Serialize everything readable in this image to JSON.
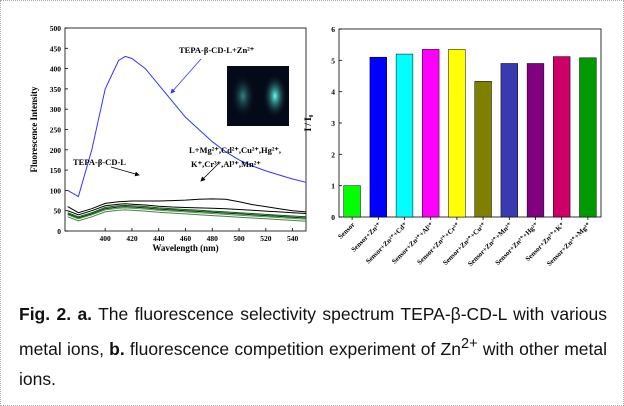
{
  "chart_data": [
    {
      "type": "line",
      "ylabel": "Fluorescence Intensity",
      "xlabel": "Wavelength (nm)",
      "xlim": [
        370,
        550
      ],
      "ylim": [
        0,
        500
      ],
      "xticks": [
        400,
        420,
        440,
        460,
        480,
        500,
        520,
        540
      ],
      "yticks": [
        0,
        50,
        100,
        150,
        200,
        250,
        300,
        350,
        400,
        450,
        500
      ],
      "x": [
        372,
        380,
        390,
        400,
        410,
        415,
        420,
        430,
        440,
        450,
        460,
        470,
        480,
        490,
        500,
        510,
        520,
        530,
        540,
        550
      ],
      "series": [
        {
          "color": "#3333ff",
          "values": [
            100,
            85,
            200,
            350,
            420,
            430,
            425,
            400,
            360,
            320,
            280,
            250,
            220,
            195,
            175,
            160,
            148,
            138,
            128,
            120
          ]
        },
        {
          "color": "#000000",
          "values": [
            60,
            45,
            55,
            68,
            72,
            73,
            74,
            74,
            74,
            75,
            76,
            78,
            79,
            78,
            72,
            65,
            60,
            55,
            50,
            47
          ]
        },
        {
          "color": "#000000",
          "values": [
            50,
            40,
            50,
            62,
            66,
            67,
            66,
            64,
            61,
            59,
            58,
            57,
            56,
            55,
            53,
            51,
            49,
            47,
            45,
            43
          ]
        },
        {
          "color": "#006600",
          "values": [
            45,
            35,
            45,
            58,
            62,
            63,
            62,
            60,
            57,
            55,
            53,
            51,
            49,
            47,
            45,
            43,
            41,
            39,
            37,
            35
          ]
        },
        {
          "color": "#222222",
          "values": [
            42,
            32,
            42,
            55,
            59,
            60,
            59,
            57,
            54,
            52,
            50,
            48,
            46,
            44,
            42,
            40,
            38,
            36,
            34,
            32
          ]
        },
        {
          "color": "#33aa33",
          "values": [
            40,
            30,
            40,
            52,
            56,
            57,
            56,
            54,
            51,
            49,
            47,
            45,
            43,
            41,
            39,
            37,
            35,
            33,
            31,
            29
          ]
        },
        {
          "color": "#557755",
          "values": [
            35,
            25,
            35,
            47,
            51,
            52,
            51,
            49,
            46,
            44,
            42,
            40,
            38,
            36,
            34,
            32,
            30,
            28,
            26,
            24
          ]
        }
      ],
      "annotations": [
        "TEPA-β-CD-L+Zn²⁺",
        "TEPA-β-CD-L",
        "L+Mg²⁺,Cd²⁺,Cu²⁺,Hg²⁺,",
        "K⁺,Cr³⁺,Al³⁺,Mn²⁺"
      ]
    },
    {
      "type": "bar",
      "ylabel": "I / I₀",
      "ylim": [
        0,
        6
      ],
      "yticks": [
        0,
        1,
        2,
        3,
        4,
        5,
        6
      ],
      "categories": [
        "Sensor",
        "Sensor+Zn²⁺",
        "Sensor+Zn²⁺+Cd⁺",
        "Sensor+Zn²⁺+Al³⁺",
        "Sensor+Zn²⁺+Cr³⁺",
        "Sensor+Zn²⁺+Cu²⁺",
        "Sensor+Zn²⁺+Mn²⁺",
        "Sensor+Zn²⁺+Hg²⁺",
        "Sensor+Zn²⁺+K⁺",
        "Sensor+Zn²⁺+Mg²⁺"
      ],
      "values": [
        1.0,
        5.1,
        5.2,
        5.35,
        5.35,
        4.33,
        4.9,
        4.9,
        5.12,
        5.08
      ],
      "colors": [
        "#00ff00",
        "#0000ff",
        "#00ffff",
        "#ff00ff",
        "#ffff00",
        "#808000",
        "#3a3ab0",
        "#800080",
        "#cc0066",
        "#009900"
      ]
    }
  ],
  "caption": {
    "fig": "Fig. 2.",
    "a": "a.",
    "text_a": "The fluorescence selectivity spectrum TEPA-β-CD-L with various metal ions,",
    "b": "b.",
    "text_b": "fluorescence competition experiment of Zn",
    "sup": "2+",
    "text_end": "with other metal ions."
  }
}
